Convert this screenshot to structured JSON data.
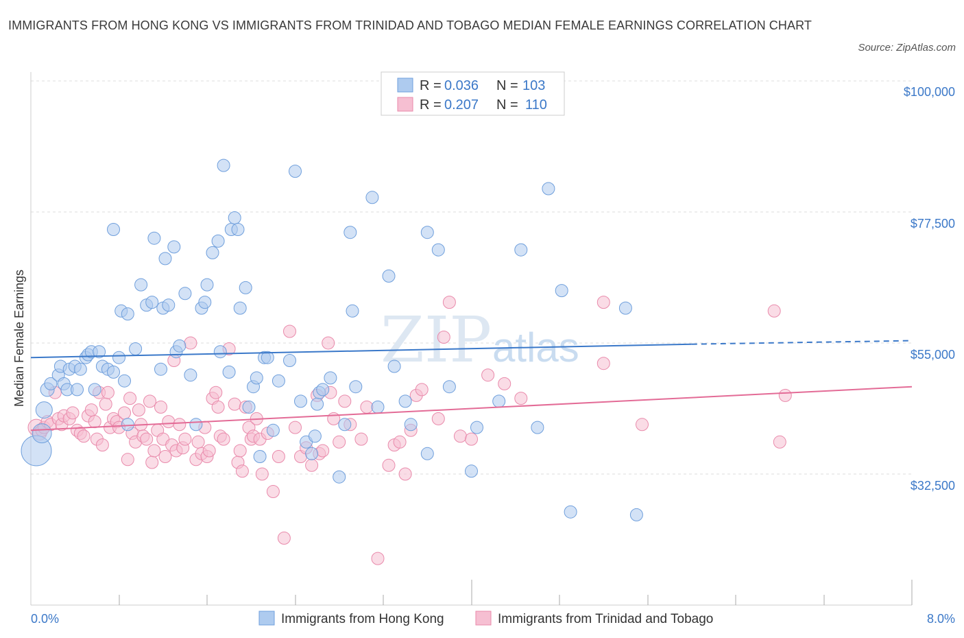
{
  "title": "IMMIGRANTS FROM HONG KONG VS IMMIGRANTS FROM TRINIDAD AND TOBAGO MEDIAN FEMALE EARNINGS CORRELATION CHART",
  "source": "Source: ZipAtlas.com",
  "watermark": {
    "zip": "ZIP",
    "atlas": "atlas"
  },
  "legend_box": {
    "rows": [
      {
        "r_label": "R = ",
        "r_value": "0.036",
        "n_label": "N = ",
        "n_value": "103"
      },
      {
        "r_label": "R = ",
        "r_value": "0.207",
        "n_label": "N = ",
        "n_value": "110"
      }
    ]
  },
  "bottom_legend": [
    "Immigrants from Hong Kong",
    "Immigrants from Trinidad and Tobago"
  ],
  "colors": {
    "blue_fill": "#aecbef",
    "blue_stroke": "#6f9fdc",
    "blue_line": "#3a78c9",
    "pink_fill": "#f6bfd2",
    "pink_stroke": "#e98aab",
    "pink_line": "#e36b96",
    "grid": "#dddddd",
    "tick_text": "#3b78c8"
  },
  "chart_data": {
    "type": "scatter",
    "title": "IMMIGRANTS FROM HONG KONG VS IMMIGRANTS FROM TRINIDAD AND TOBAGO MEDIAN FEMALE EARNINGS CORRELATION CHART",
    "xlabel": "",
    "ylabel": "Median Female Earnings",
    "x_tick_labels": [
      "0.0%",
      "8.0%"
    ],
    "y_tick_labels": [
      "$100,000",
      "$77,500",
      "$55,000",
      "$32,500"
    ],
    "y_ticks": [
      100000,
      77500,
      55000,
      32500
    ],
    "xlim": [
      0,
      8
    ],
    "ylim": [
      12000,
      103000
    ],
    "grid": true,
    "series": [
      {
        "name": "Immigrants from Hong Kong",
        "R": 0.036,
        "N": 103,
        "trend": {
          "x": [
            0,
            6.0
          ],
          "y": [
            52500,
            54800
          ],
          "dashed_to_x": 8.0,
          "dashed_to_y": 55400
        },
        "points": [
          [
            0.05,
            36500,
            22
          ],
          [
            0.1,
            39500,
            14
          ],
          [
            0.12,
            43500,
            12
          ],
          [
            0.15,
            47000,
            10
          ],
          [
            0.18,
            48000,
            9
          ],
          [
            0.25,
            49500,
            9
          ],
          [
            0.27,
            51000,
            9
          ],
          [
            0.3,
            48000,
            9
          ],
          [
            0.33,
            47000,
            9
          ],
          [
            0.35,
            50500,
            9
          ],
          [
            0.4,
            51000,
            9
          ],
          [
            0.42,
            47000,
            9
          ],
          [
            0.45,
            50500,
            9
          ],
          [
            0.5,
            52500,
            9
          ],
          [
            0.52,
            53000,
            9
          ],
          [
            0.55,
            53500,
            9
          ],
          [
            0.58,
            47000,
            9
          ],
          [
            0.62,
            53500,
            9
          ],
          [
            0.65,
            51000,
            9
          ],
          [
            0.7,
            50500,
            9
          ],
          [
            0.75,
            50000,
            9
          ],
          [
            0.8,
            52500,
            9
          ],
          [
            0.85,
            48500,
            9
          ],
          [
            0.88,
            41000,
            9
          ],
          [
            0.75,
            74500,
            9
          ],
          [
            0.82,
            60500,
            9
          ],
          [
            0.88,
            60000,
            9
          ],
          [
            0.95,
            54000,
            9
          ],
          [
            1.0,
            65000,
            9
          ],
          [
            1.05,
            61500,
            9
          ],
          [
            1.1,
            62000,
            9
          ],
          [
            1.12,
            73000,
            9
          ],
          [
            1.18,
            50500,
            9
          ],
          [
            1.2,
            61000,
            9
          ],
          [
            1.22,
            69500,
            9
          ],
          [
            1.25,
            61500,
            9
          ],
          [
            1.3,
            71500,
            9
          ],
          [
            1.32,
            53500,
            9
          ],
          [
            1.35,
            54500,
            9
          ],
          [
            1.4,
            63500,
            9
          ],
          [
            1.45,
            49500,
            9
          ],
          [
            1.5,
            41000,
            9
          ],
          [
            1.55,
            61000,
            9
          ],
          [
            1.58,
            62000,
            9
          ],
          [
            1.6,
            65000,
            9
          ],
          [
            1.65,
            70500,
            9
          ],
          [
            1.7,
            72500,
            9
          ],
          [
            1.72,
            53500,
            9
          ],
          [
            1.75,
            85500,
            9
          ],
          [
            1.8,
            50000,
            9
          ],
          [
            1.82,
            74500,
            9
          ],
          [
            1.85,
            76500,
            9
          ],
          [
            1.88,
            74500,
            9
          ],
          [
            1.9,
            61000,
            9
          ],
          [
            1.95,
            64500,
            9
          ],
          [
            1.98,
            44000,
            9
          ],
          [
            2.02,
            47500,
            9
          ],
          [
            2.05,
            49000,
            9
          ],
          [
            2.08,
            35500,
            9
          ],
          [
            2.12,
            52500,
            9
          ],
          [
            2.15,
            52500,
            9
          ],
          [
            2.2,
            40000,
            9
          ],
          [
            2.25,
            48500,
            9
          ],
          [
            2.35,
            52000,
            9
          ],
          [
            2.4,
            84500,
            9
          ],
          [
            2.45,
            45000,
            9
          ],
          [
            2.5,
            38000,
            9
          ],
          [
            2.55,
            36000,
            9
          ],
          [
            2.58,
            39000,
            9
          ],
          [
            2.6,
            44500,
            9
          ],
          [
            2.62,
            46500,
            9
          ],
          [
            2.65,
            47000,
            9
          ],
          [
            2.72,
            49000,
            9
          ],
          [
            2.8,
            32000,
            9
          ],
          [
            2.85,
            41000,
            9
          ],
          [
            2.9,
            74000,
            9
          ],
          [
            2.92,
            60500,
            9
          ],
          [
            2.95,
            47500,
            9
          ],
          [
            3.1,
            80000,
            9
          ],
          [
            3.15,
            44000,
            9
          ],
          [
            3.25,
            66500,
            9
          ],
          [
            3.3,
            51000,
            9
          ],
          [
            3.4,
            45000,
            9
          ],
          [
            3.45,
            41000,
            9
          ],
          [
            3.6,
            36000,
            9
          ],
          [
            3.6,
            74000,
            9
          ],
          [
            3.7,
            71000,
            9
          ],
          [
            3.8,
            47500,
            9
          ],
          [
            4.0,
            33000,
            9
          ],
          [
            4.05,
            40500,
            9
          ],
          [
            4.25,
            45000,
            9
          ],
          [
            4.45,
            71000,
            9
          ],
          [
            4.6,
            40500,
            9
          ],
          [
            4.7,
            81500,
            9
          ],
          [
            4.82,
            64000,
            9
          ],
          [
            4.9,
            26000,
            9
          ],
          [
            5.4,
            61000,
            9
          ],
          [
            5.5,
            25500,
            9
          ]
        ]
      },
      {
        "name": "Immigrants from Trinidad and Tobago",
        "R": 0.207,
        "N": 110,
        "trend": {
          "x": [
            0,
            8.0
          ],
          "y": [
            40000,
            47500
          ]
        },
        "points": [
          [
            0.05,
            40500,
            12
          ],
          [
            0.08,
            39500,
            10
          ],
          [
            0.1,
            40000,
            9
          ],
          [
            0.12,
            40500,
            9
          ],
          [
            0.15,
            41500,
            9
          ],
          [
            0.18,
            41000,
            9
          ],
          [
            0.22,
            46500,
            9
          ],
          [
            0.25,
            42000,
            9
          ],
          [
            0.28,
            41000,
            9
          ],
          [
            0.3,
            42500,
            9
          ],
          [
            0.35,
            42000,
            9
          ],
          [
            0.38,
            43000,
            9
          ],
          [
            0.42,
            40000,
            9
          ],
          [
            0.45,
            39500,
            9
          ],
          [
            0.48,
            39000,
            9
          ],
          [
            0.52,
            42500,
            9
          ],
          [
            0.55,
            43500,
            9
          ],
          [
            0.58,
            41500,
            9
          ],
          [
            0.6,
            38500,
            9
          ],
          [
            0.62,
            46500,
            9
          ],
          [
            0.65,
            37500,
            9
          ],
          [
            0.68,
            44500,
            9
          ],
          [
            0.7,
            46500,
            9
          ],
          [
            0.72,
            40500,
            9
          ],
          [
            0.75,
            42000,
            9
          ],
          [
            0.78,
            41500,
            9
          ],
          [
            0.8,
            40500,
            9
          ],
          [
            0.85,
            43000,
            9
          ],
          [
            0.88,
            35000,
            9
          ],
          [
            0.9,
            45500,
            9
          ],
          [
            0.92,
            39500,
            9
          ],
          [
            0.95,
            38000,
            9
          ],
          [
            0.98,
            43500,
            9
          ],
          [
            1.0,
            41000,
            9
          ],
          [
            1.02,
            39000,
            9
          ],
          [
            1.05,
            38500,
            9
          ],
          [
            1.08,
            45000,
            9
          ],
          [
            1.1,
            34500,
            9
          ],
          [
            1.12,
            36500,
            9
          ],
          [
            1.15,
            40000,
            9
          ],
          [
            1.18,
            44000,
            9
          ],
          [
            1.2,
            38500,
            9
          ],
          [
            1.22,
            35500,
            9
          ],
          [
            1.25,
            41500,
            9
          ],
          [
            1.28,
            37500,
            9
          ],
          [
            1.3,
            52000,
            9
          ],
          [
            1.32,
            36500,
            9
          ],
          [
            1.35,
            41000,
            9
          ],
          [
            1.38,
            37000,
            9
          ],
          [
            1.4,
            38500,
            9
          ],
          [
            1.45,
            55000,
            9
          ],
          [
            1.5,
            35000,
            9
          ],
          [
            1.52,
            38000,
            9
          ],
          [
            1.55,
            36000,
            9
          ],
          [
            1.58,
            40500,
            9
          ],
          [
            1.6,
            35500,
            9
          ],
          [
            1.62,
            36500,
            9
          ],
          [
            1.65,
            45500,
            9
          ],
          [
            1.68,
            46500,
            9
          ],
          [
            1.7,
            44000,
            9
          ],
          [
            1.72,
            39000,
            9
          ],
          [
            1.75,
            38500,
            9
          ],
          [
            1.8,
            54000,
            9
          ],
          [
            1.85,
            44500,
            9
          ],
          [
            1.88,
            34500,
            9
          ],
          [
            1.9,
            36500,
            9
          ],
          [
            1.92,
            33000,
            9
          ],
          [
            1.95,
            44000,
            9
          ],
          [
            1.98,
            40500,
            9
          ],
          [
            2.0,
            38500,
            9
          ],
          [
            2.02,
            39000,
            9
          ],
          [
            2.05,
            42000,
            9
          ],
          [
            2.08,
            38500,
            9
          ],
          [
            2.1,
            32500,
            9
          ],
          [
            2.15,
            39500,
            9
          ],
          [
            2.2,
            29500,
            9
          ],
          [
            2.25,
            35500,
            9
          ],
          [
            2.3,
            21500,
            9
          ],
          [
            2.35,
            57000,
            9
          ],
          [
            2.4,
            40500,
            9
          ],
          [
            2.45,
            35500,
            9
          ],
          [
            2.5,
            37000,
            9
          ],
          [
            2.55,
            34000,
            9
          ],
          [
            2.6,
            46000,
            9
          ],
          [
            2.62,
            36000,
            9
          ],
          [
            2.65,
            36500,
            9
          ],
          [
            2.7,
            55000,
            9
          ],
          [
            2.72,
            46500,
            9
          ],
          [
            2.75,
            42000,
            9
          ],
          [
            2.8,
            38000,
            9
          ],
          [
            2.85,
            45000,
            9
          ],
          [
            2.9,
            41000,
            9
          ],
          [
            3.0,
            38500,
            9
          ],
          [
            3.05,
            44000,
            9
          ],
          [
            3.15,
            18000,
            9
          ],
          [
            3.25,
            34000,
            9
          ],
          [
            3.3,
            37500,
            9
          ],
          [
            3.35,
            38000,
            9
          ],
          [
            3.4,
            32500,
            9
          ],
          [
            3.45,
            40000,
            9
          ],
          [
            3.5,
            46000,
            9
          ],
          [
            3.55,
            47000,
            9
          ],
          [
            3.7,
            42000,
            9
          ],
          [
            3.75,
            56000,
            9
          ],
          [
            3.8,
            62000,
            9
          ],
          [
            3.9,
            39000,
            9
          ],
          [
            4.0,
            38500,
            9
          ],
          [
            4.15,
            49500,
            9
          ],
          [
            4.3,
            48000,
            9
          ],
          [
            4.45,
            45500,
            9
          ],
          [
            5.2,
            51500,
            9
          ],
          [
            5.2,
            62000,
            9
          ],
          [
            5.55,
            41000,
            9
          ],
          [
            6.75,
            60500,
            9
          ],
          [
            6.8,
            38000,
            9
          ],
          [
            6.85,
            46000,
            9
          ]
        ]
      }
    ]
  }
}
